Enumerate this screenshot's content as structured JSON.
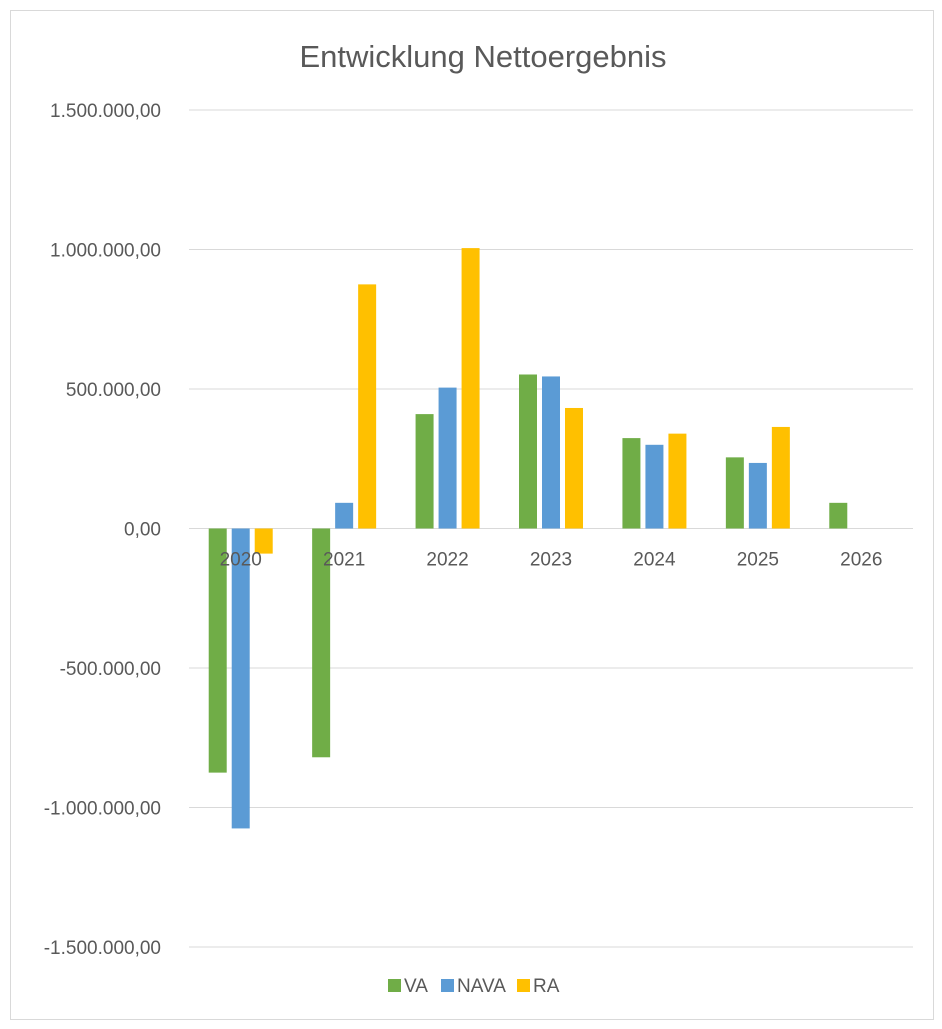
{
  "chart_data": {
    "type": "bar",
    "title": "Entwicklung Nettoergebnis",
    "xlabel": "",
    "ylabel": "",
    "categories": [
      "2020",
      "2021",
      "2022",
      "2023",
      "2024",
      "2025",
      "2026"
    ],
    "series": [
      {
        "name": "VA",
        "color": "#70ad47",
        "values": [
          -875000,
          -820000,
          410000,
          552000,
          324000,
          255000,
          92000
        ]
      },
      {
        "name": "NAVA",
        "color": "#5b9bd5",
        "values": [
          -1075000,
          92000,
          505000,
          545000,
          300000,
          235000,
          null
        ]
      },
      {
        "name": "RA",
        "color": "#ffc000",
        "values": [
          -90000,
          875000,
          1005000,
          432000,
          340000,
          364000,
          null
        ]
      }
    ],
    "ylim": [
      -1500000,
      1500000
    ],
    "y_ticks": [
      1500000,
      1000000,
      500000,
      0,
      -500000,
      -1000000,
      -1500000
    ],
    "y_tick_labels": [
      "1.500.000,00",
      "1.000.000,00",
      "500.000,00",
      "0,00",
      "-500.000,00",
      "-1.000.000,00",
      "-1.500.000,00"
    ],
    "grid": true,
    "legend": "bottom"
  }
}
